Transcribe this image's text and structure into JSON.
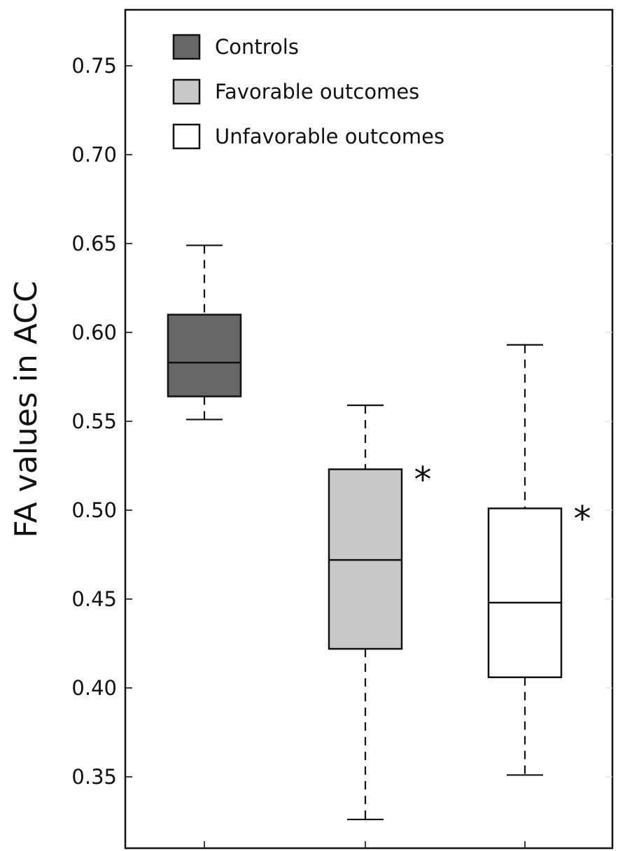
{
  "chart_data": {
    "type": "box",
    "ylabel": "FA values in ACC",
    "ylim": [
      0.32,
      0.78
    ],
    "yticks": [
      "0.75",
      "0.70",
      "0.65",
      "0.60",
      "0.55",
      "0.50",
      "0.45",
      "0.40",
      "0.35"
    ],
    "grid": false,
    "legend_position": "top-left",
    "series": [
      {
        "name": "Controls",
        "color": "#676767",
        "whisker_low": 0.551,
        "q1": 0.564,
        "median": 0.583,
        "q3": 0.61,
        "whisker_high": 0.649,
        "annotation": ""
      },
      {
        "name": "Favorable outcomes",
        "color": "#c8c8c8",
        "whisker_low": 0.326,
        "q1": 0.422,
        "median": 0.472,
        "q3": 0.523,
        "whisker_high": 0.559,
        "annotation": "*"
      },
      {
        "name": "Unfavorable outcomes",
        "color": "#ffffff",
        "whisker_low": 0.351,
        "q1": 0.406,
        "median": 0.448,
        "q3": 0.501,
        "whisker_high": 0.593,
        "annotation": "*"
      }
    ]
  }
}
